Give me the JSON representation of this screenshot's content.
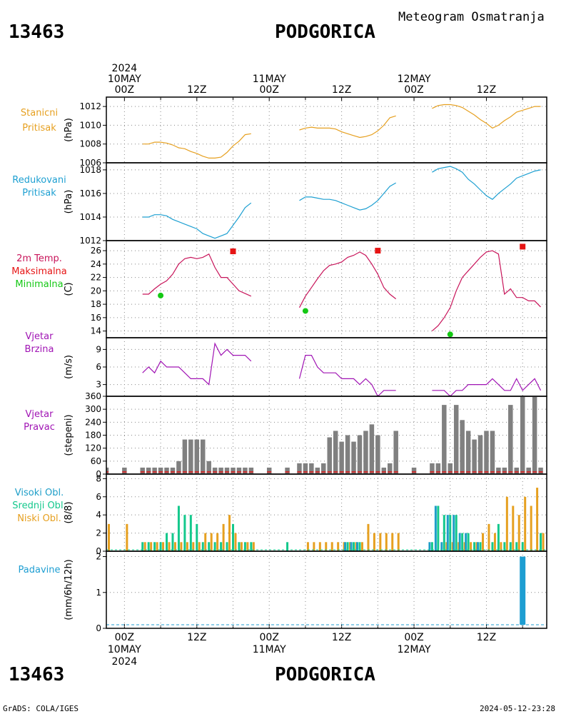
{
  "header": {
    "station_id": "13463",
    "station_name": "PODGORICA",
    "meteogram_title": "Meteogram Osmatranja"
  },
  "footer": {
    "station_id": "13463",
    "station_name": "PODGORICA",
    "source": "GrADS: COLA/IGES",
    "timestamp": "2024-05-12-23:28"
  },
  "time_axis": {
    "top_labels": [
      {
        "t": 0,
        "lines": [
          "2024",
          "10MAY",
          "00Z"
        ]
      },
      {
        "t": 12,
        "lines": [
          "12Z"
        ]
      },
      {
        "t": 24,
        "lines": [
          "11MAY",
          "00Z"
        ]
      },
      {
        "t": 36,
        "lines": [
          "12Z"
        ]
      },
      {
        "t": 48,
        "lines": [
          "12MAY",
          "00Z"
        ]
      },
      {
        "t": 60,
        "lines": [
          "12Z"
        ]
      }
    ],
    "bottom_labels": [
      {
        "t": 0,
        "lines": [
          "00Z",
          "10MAY",
          "2024"
        ]
      },
      {
        "t": 12,
        "lines": [
          "12Z"
        ]
      },
      {
        "t": 24,
        "lines": [
          "00Z",
          "11MAY"
        ]
      },
      {
        "t": 36,
        "lines": [
          "12Z"
        ]
      },
      {
        "t": 48,
        "lines": [
          "00Z",
          "12MAY"
        ]
      },
      {
        "t": 60,
        "lines": [
          "12Z"
        ]
      }
    ]
  },
  "panels": {
    "pressure": {
      "labels": [
        "Stanicni",
        "Pritisak"
      ],
      "color": "#e6a020",
      "unit": "(hPa)"
    },
    "reduced": {
      "labels": [
        "Redukovani",
        "Pritisak"
      ],
      "color": "#1ea0d2",
      "unit": "(hPa)"
    },
    "temp": {
      "labels": [
        "2m Temp.",
        "Maksimalna",
        "Minimalna"
      ],
      "colors": [
        "#c8145a",
        "#e61414",
        "#14c814"
      ],
      "unit": "(C)"
    },
    "wind_speed": {
      "labels": [
        "Vjetar",
        "Brzina"
      ],
      "color": "#a014b4",
      "unit": "(m/s)"
    },
    "wind_dir": {
      "labels": [
        "Vjetar",
        "Pravac"
      ],
      "color": "#a014b4",
      "unit": "(stepeni)"
    },
    "clouds": {
      "labels": [
        "Visoki Obl.",
        "Srednji Obl.",
        "Niski Obl."
      ],
      "colors": [
        "#1e9ec8",
        "#14c88c",
        "#e6a020"
      ],
      "unit": "(8/8)"
    },
    "precip": {
      "labels": [
        "Padavine"
      ],
      "color": "#1e9ed2",
      "unit": "(mm/6h/12h)"
    }
  },
  "chart_data": [
    {
      "type": "line",
      "title": "Stanicni Pritisak",
      "ylabel": "(hPa)",
      "ylim": [
        1006,
        1013
      ],
      "yticks": [
        1006,
        1008,
        1010,
        1012
      ],
      "series": [
        {
          "x": [
            3,
            4,
            5,
            6,
            7,
            8,
            9,
            10,
            11,
            12,
            13,
            14,
            15,
            16,
            17,
            18,
            19,
            20,
            21
          ],
          "y": [
            1008.0,
            1008.0,
            1008.2,
            1008.2,
            1008.1,
            1007.9,
            1007.6,
            1007.5,
            1007.2,
            1007.0,
            1006.7,
            1006.5,
            1006.5,
            1006.6,
            1007.1,
            1007.8,
            1008.3,
            1009.0,
            1009.1
          ]
        },
        {
          "x": [
            29,
            30,
            31,
            32,
            33,
            34,
            35,
            36,
            37,
            38,
            39,
            40,
            41,
            42,
            43,
            44,
            45
          ],
          "y": [
            1009.5,
            1009.7,
            1009.8,
            1009.7,
            1009.7,
            1009.7,
            1009.6,
            1009.3,
            1009.1,
            1008.9,
            1008.7,
            1008.8,
            1009.0,
            1009.4,
            1010.0,
            1010.8,
            1011.0
          ]
        },
        {
          "x": [
            51,
            52,
            53,
            54,
            55,
            56,
            57,
            58,
            59,
            60,
            61,
            62,
            63,
            64,
            65,
            66,
            67,
            68,
            69
          ],
          "y": [
            1011.8,
            1012.1,
            1012.2,
            1012.2,
            1012.1,
            1011.9,
            1011.5,
            1011.1,
            1010.6,
            1010.2,
            1009.7,
            1010.0,
            1010.5,
            1010.9,
            1011.4,
            1011.6,
            1011.8,
            1012.0,
            1012.0
          ]
        }
      ]
    },
    {
      "type": "line",
      "title": "Redukovani Pritisak",
      "ylabel": "(hPa)",
      "ylim": [
        1012,
        1018.6
      ],
      "yticks": [
        1012,
        1014,
        1016,
        1018
      ],
      "series": [
        {
          "x": [
            3,
            4,
            5,
            6,
            7,
            8,
            9,
            10,
            11,
            12,
            13,
            14,
            15,
            16,
            17,
            18,
            19,
            20,
            21
          ],
          "y": [
            1014.0,
            1014.0,
            1014.2,
            1014.2,
            1014.1,
            1013.8,
            1013.6,
            1013.4,
            1013.2,
            1013.0,
            1012.6,
            1012.4,
            1012.2,
            1012.4,
            1012.6,
            1013.3,
            1014.0,
            1014.8,
            1015.2
          ]
        },
        {
          "x": [
            29,
            30,
            31,
            32,
            33,
            34,
            35,
            36,
            37,
            38,
            39,
            40,
            41,
            42,
            43,
            44,
            45
          ],
          "y": [
            1015.4,
            1015.7,
            1015.7,
            1015.6,
            1015.5,
            1015.5,
            1015.4,
            1015.2,
            1015.0,
            1014.8,
            1014.6,
            1014.7,
            1015.0,
            1015.4,
            1016.0,
            1016.6,
            1016.9
          ]
        },
        {
          "x": [
            51,
            52,
            53,
            54,
            55,
            56,
            57,
            58,
            59,
            60,
            61,
            62,
            63,
            64,
            65,
            66,
            67,
            68,
            69
          ],
          "y": [
            1017.8,
            1018.1,
            1018.2,
            1018.3,
            1018.1,
            1017.8,
            1017.2,
            1016.8,
            1016.3,
            1015.8,
            1015.5,
            1016.0,
            1016.4,
            1016.8,
            1017.3,
            1017.5,
            1017.7,
            1017.9,
            1018.0
          ]
        }
      ]
    },
    {
      "type": "line",
      "title": "2m Temp. Maksimalna Minimalna",
      "ylabel": "(C)",
      "ylim": [
        13,
        27.5
      ],
      "yticks": [
        14,
        16,
        18,
        20,
        22,
        24,
        26
      ],
      "series": [
        {
          "name": "2m Temp.",
          "x": [
            3,
            4,
            5,
            6,
            7,
            8,
            9,
            10,
            11,
            12,
            13,
            14,
            15,
            16,
            17,
            18,
            19,
            20,
            21
          ],
          "y": [
            19.5,
            19.5,
            20.3,
            21.0,
            21.5,
            22.5,
            24.0,
            24.8,
            25.0,
            24.8,
            25.0,
            25.5,
            23.5,
            22.0,
            22.0,
            21.0,
            20.0,
            19.6,
            19.2
          ]
        },
        {
          "name": "2m Temp.",
          "x": [
            29,
            30,
            31,
            32,
            33,
            34,
            35,
            36,
            37,
            38,
            39,
            40,
            41,
            42,
            43,
            44,
            45
          ],
          "y": [
            17.5,
            19.2,
            20.5,
            21.8,
            23.0,
            23.8,
            24.0,
            24.3,
            25.0,
            25.3,
            25.8,
            25.3,
            24.0,
            22.5,
            20.5,
            19.5,
            18.8
          ]
        },
        {
          "name": "2m Temp.",
          "x": [
            51,
            52,
            53,
            54,
            55,
            56,
            57,
            58,
            59,
            60,
            61,
            62,
            63,
            64,
            65,
            66,
            67,
            68,
            69
          ],
          "y": [
            14.0,
            14.8,
            16.0,
            17.5,
            20.0,
            22.0,
            23.0,
            24.0,
            25.0,
            25.8,
            26.0,
            25.5,
            19.5,
            20.3,
            19.0,
            19.0,
            18.5,
            18.5,
            17.6
          ]
        }
      ],
      "max_points": {
        "x": [
          18,
          42,
          66
        ],
        "y": [
          25.9,
          26.0,
          26.6
        ]
      },
      "min_points": {
        "x": [
          6,
          30,
          54
        ],
        "y": [
          19.3,
          17.0,
          13.5
        ]
      }
    },
    {
      "type": "line",
      "title": "Vjetar Brzina",
      "ylabel": "(m/s)",
      "ylim": [
        1,
        11
      ],
      "yticks": [
        3,
        6,
        9
      ],
      "series": [
        {
          "x": [
            3,
            4,
            5,
            6,
            7,
            8,
            9,
            10,
            11,
            12,
            13,
            14,
            15,
            16,
            17,
            18,
            19,
            20,
            21
          ],
          "y": [
            5,
            6,
            5,
            7,
            6,
            6,
            6,
            5,
            4,
            4,
            4,
            3,
            10,
            8,
            9,
            8,
            8,
            8,
            7
          ]
        },
        {
          "x": [
            29,
            30,
            31,
            32,
            33,
            34,
            35,
            36,
            37,
            38,
            39,
            40,
            41,
            42,
            43,
            44,
            45
          ],
          "y": [
            4,
            8,
            8,
            6,
            5,
            5,
            5,
            4,
            4,
            4,
            3,
            4,
            3,
            1,
            2,
            2,
            2
          ]
        },
        {
          "x": [
            51,
            52,
            53,
            54,
            55,
            56,
            57,
            58,
            59,
            60,
            61,
            62,
            63,
            64,
            65,
            66,
            67,
            68,
            69
          ],
          "y": [
            2,
            2,
            2,
            1,
            2,
            2,
            3,
            3,
            3,
            3,
            4,
            3,
            2,
            2,
            4,
            2,
            3,
            4,
            2
          ]
        }
      ]
    },
    {
      "type": "bar",
      "title": "Vjetar Pravac",
      "ylabel": "(stepeni)",
      "ylim": [
        0,
        360
      ],
      "yticks": [
        0,
        60,
        120,
        180,
        240,
        300,
        360
      ],
      "x": [
        -3,
        0,
        3,
        4,
        5,
        6,
        7,
        8,
        9,
        10,
        11,
        12,
        13,
        14,
        15,
        16,
        17,
        18,
        19,
        20,
        21,
        24,
        27,
        29,
        30,
        31,
        32,
        33,
        34,
        35,
        36,
        37,
        38,
        39,
        40,
        41,
        42,
        43,
        44,
        45,
        48,
        51,
        52,
        53,
        54,
        55,
        56,
        57,
        58,
        59,
        60,
        61,
        62,
        63,
        64,
        65,
        66,
        67,
        68,
        69
      ],
      "values": [
        30,
        30,
        30,
        30,
        30,
        30,
        30,
        30,
        60,
        160,
        160,
        160,
        160,
        60,
        30,
        30,
        30,
        30,
        30,
        30,
        30,
        30,
        30,
        50,
        50,
        50,
        30,
        50,
        170,
        200,
        150,
        180,
        150,
        180,
        200,
        230,
        180,
        30,
        50,
        200,
        30,
        50,
        50,
        320,
        50,
        320,
        250,
        200,
        160,
        180,
        200,
        200,
        30,
        30,
        320,
        30,
        360,
        30,
        360,
        30
      ]
    },
    {
      "type": "bar",
      "title": "Visoki Obl. Srednji Obl. Niski Obl.",
      "ylabel": "(8/8)",
      "ylim": [
        0,
        8.5
      ],
      "yticks": [
        0,
        2,
        4,
        6,
        8
      ],
      "x": [
        -3,
        0,
        3,
        4,
        5,
        6,
        7,
        8,
        9,
        10,
        11,
        12,
        13,
        14,
        15,
        16,
        17,
        18,
        19,
        20,
        21,
        24,
        27,
        29,
        30,
        31,
        32,
        33,
        34,
        35,
        36,
        37,
        38,
        39,
        40,
        41,
        42,
        43,
        44,
        45,
        48,
        51,
        52,
        53,
        54,
        55,
        56,
        57,
        58,
        59,
        60,
        61,
        62,
        63,
        64,
        65,
        66,
        67,
        68,
        69
      ],
      "series": [
        {
          "name": "Visoki Obl.",
          "values": [
            0,
            0,
            0,
            0,
            0,
            0,
            0,
            0,
            0,
            0,
            0,
            0,
            0,
            0,
            0,
            0,
            0,
            0,
            0,
            0,
            0,
            0,
            0,
            0,
            0,
            0,
            0,
            0,
            0,
            0,
            0,
            1,
            1,
            1,
            0,
            0,
            0,
            0,
            0,
            0,
            0,
            1,
            5,
            1,
            4,
            4,
            2,
            2,
            0,
            1,
            0,
            0,
            0,
            0,
            0,
            0,
            0,
            0,
            0,
            0
          ]
        },
        {
          "name": "Srednji Obl.",
          "values": [
            0,
            0,
            1,
            1,
            1,
            1,
            2,
            2,
            5,
            4,
            4,
            3,
            1,
            1,
            1,
            1,
            1,
            3,
            1,
            1,
            1,
            0,
            1,
            0,
            0,
            0,
            0,
            0,
            0,
            0,
            0,
            1,
            1,
            1,
            0,
            0,
            0,
            0,
            0,
            0,
            0,
            1,
            5,
            4,
            4,
            4,
            2,
            2,
            1,
            1,
            0,
            1,
            3,
            1,
            1,
            1,
            1,
            0,
            0,
            2
          ]
        },
        {
          "name": "Niski Obl.",
          "values": [
            3,
            3,
            1,
            1,
            1,
            1,
            1,
            1,
            1,
            1,
            1,
            1,
            2,
            2,
            2,
            3,
            4,
            2,
            1,
            1,
            1,
            0,
            0,
            0,
            1,
            1,
            1,
            1,
            1,
            1,
            1,
            1,
            1,
            1,
            3,
            2,
            2,
            2,
            2,
            2,
            0,
            0,
            0,
            1,
            1,
            1,
            1,
            1,
            1,
            2,
            3,
            2,
            1,
            6,
            5,
            4,
            6,
            5,
            7,
            2
          ]
        }
      ]
    },
    {
      "type": "bar",
      "title": "Padavine",
      "ylabel": "(mm/6h/12h)",
      "ylim": [
        0,
        2.15
      ],
      "yticks": [
        0,
        1,
        2
      ],
      "x": [
        66
      ],
      "values": [
        2.0
      ]
    }
  ]
}
